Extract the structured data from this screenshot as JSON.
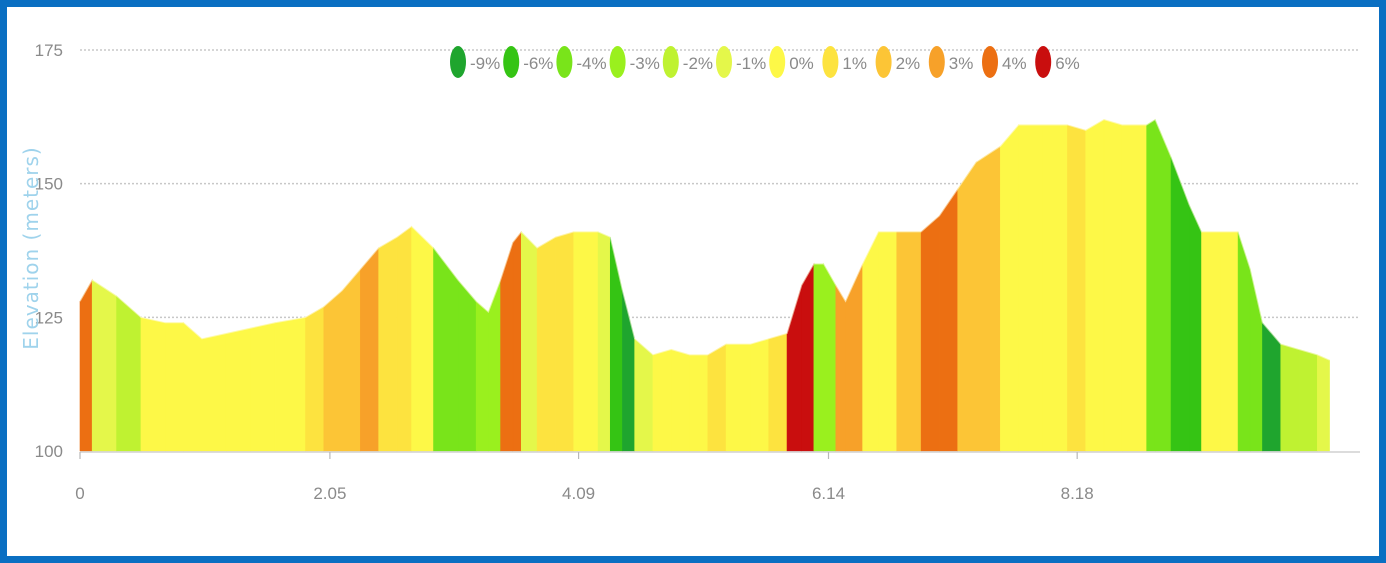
{
  "chart_data": {
    "type": "area",
    "title": "",
    "ylabel": "Elevation (meters)",
    "xlabel": "",
    "xlim": [
      0,
      10.5
    ],
    "ylim": [
      100,
      175
    ],
    "x_ticks": [
      "0",
      "2.05",
      "4.09",
      "6.14",
      "8.18"
    ],
    "x_tick_values": [
      0,
      2.05,
      4.09,
      6.14,
      8.18
    ],
    "y_ticks": [
      "100",
      "125",
      "150",
      "175"
    ],
    "y_tick_values": [
      100,
      125,
      150,
      175
    ],
    "grid": true,
    "legend_position": "top-center",
    "legend": [
      {
        "label": "-9%",
        "color": "#1fa52e"
      },
      {
        "label": "-6%",
        "color": "#35c414"
      },
      {
        "label": "-4%",
        "color": "#79e41a"
      },
      {
        "label": "-3%",
        "color": "#9af01e"
      },
      {
        "label": "-2%",
        "color": "#bff231"
      },
      {
        "label": "-1%",
        "color": "#e4f74a"
      },
      {
        "label": "0%",
        "color": "#fdf847"
      },
      {
        "label": "1%",
        "color": "#fde33f"
      },
      {
        "label": "2%",
        "color": "#fcc536"
      },
      {
        "label": "3%",
        "color": "#f7a129"
      },
      {
        "label": "4%",
        "color": "#ec6f12"
      },
      {
        "label": "6%",
        "color": "#c90e0e"
      }
    ],
    "profile": [
      [
        0.0,
        128
      ],
      [
        0.1,
        132
      ],
      [
        0.3,
        129
      ],
      [
        0.5,
        125
      ],
      [
        0.7,
        124
      ],
      [
        0.85,
        124
      ],
      [
        1.0,
        121
      ],
      [
        1.2,
        122
      ],
      [
        1.4,
        123
      ],
      [
        1.6,
        124
      ],
      [
        1.85,
        125
      ],
      [
        2.0,
        127
      ],
      [
        2.15,
        130
      ],
      [
        2.3,
        134
      ],
      [
        2.45,
        138
      ],
      [
        2.6,
        140
      ],
      [
        2.72,
        142
      ],
      [
        2.9,
        138
      ],
      [
        3.1,
        132
      ],
      [
        3.25,
        128
      ],
      [
        3.35,
        126
      ],
      [
        3.45,
        132
      ],
      [
        3.55,
        139
      ],
      [
        3.62,
        141
      ],
      [
        3.75,
        138
      ],
      [
        3.9,
        140
      ],
      [
        4.05,
        141
      ],
      [
        4.15,
        141
      ],
      [
        4.25,
        141
      ],
      [
        4.35,
        140
      ],
      [
        4.45,
        130
      ],
      [
        4.55,
        121
      ],
      [
        4.7,
        118
      ],
      [
        4.85,
        119
      ],
      [
        5.0,
        118
      ],
      [
        5.15,
        118
      ],
      [
        5.3,
        120
      ],
      [
        5.5,
        120
      ],
      [
        5.65,
        121
      ],
      [
        5.8,
        122
      ],
      [
        5.92,
        131
      ],
      [
        6.02,
        135
      ],
      [
        6.1,
        135
      ],
      [
        6.2,
        131
      ],
      [
        6.28,
        128
      ],
      [
        6.42,
        135
      ],
      [
        6.55,
        141
      ],
      [
        6.7,
        141
      ],
      [
        6.9,
        141
      ],
      [
        7.05,
        144
      ],
      [
        7.2,
        149
      ],
      [
        7.35,
        154
      ],
      [
        7.55,
        157
      ],
      [
        7.7,
        161
      ],
      [
        7.9,
        161
      ],
      [
        8.1,
        161
      ],
      [
        8.25,
        160
      ],
      [
        8.4,
        162
      ],
      [
        8.55,
        161
      ],
      [
        8.75,
        161
      ],
      [
        8.82,
        162
      ],
      [
        8.95,
        155
      ],
      [
        9.1,
        146
      ],
      [
        9.2,
        141
      ],
      [
        9.35,
        141
      ],
      [
        9.5,
        141
      ],
      [
        9.6,
        134
      ],
      [
        9.7,
        124
      ],
      [
        9.85,
        120
      ],
      [
        10.0,
        119
      ],
      [
        10.15,
        118
      ],
      [
        10.25,
        117
      ]
    ],
    "segment_colors": [
      "#ec6f12",
      "#e4f74a",
      "#bff231",
      "#fdf847",
      "#fdf847",
      "#fdf847",
      "#fdf847",
      "#fdf847",
      "#fdf847",
      "#fdf847",
      "#fde33f",
      "#fcc536",
      "#fcc536",
      "#f7a129",
      "#fde33f",
      "#fde33f",
      "#fdf847",
      "#79e41a",
      "#79e41a",
      "#9af01e",
      "#9af01e",
      "#ec6f12",
      "#ec6f12",
      "#e4f74a",
      "#fde33f",
      "#fde33f",
      "#fdf847",
      "#fdf847",
      "#e4f74a",
      "#35c414",
      "#1fa52e",
      "#e4f74a",
      "#fdf847",
      "#fdf847",
      "#fdf847",
      "#fde33f",
      "#fdf847",
      "#fdf847",
      "#fde33f",
      "#c90e0e",
      "#c90e0e",
      "#9af01e",
      "#9af01e",
      "#f7a129",
      "#f7a129",
      "#fdf847",
      "#fdf847",
      "#fcc536",
      "#ec6f12",
      "#ec6f12",
      "#fcc536",
      "#fcc536",
      "#fdf847",
      "#fdf847",
      "#fdf847",
      "#fde33f",
      "#fdf847",
      "#fdf847",
      "#fdf847",
      "#79e41a",
      "#79e41a",
      "#35c414",
      "#35c414",
      "#fdf847",
      "#fdf847",
      "#79e41a",
      "#79e41a",
      "#1fa52e",
      "#bff231",
      "#bff231",
      "#e4f74a"
    ]
  }
}
